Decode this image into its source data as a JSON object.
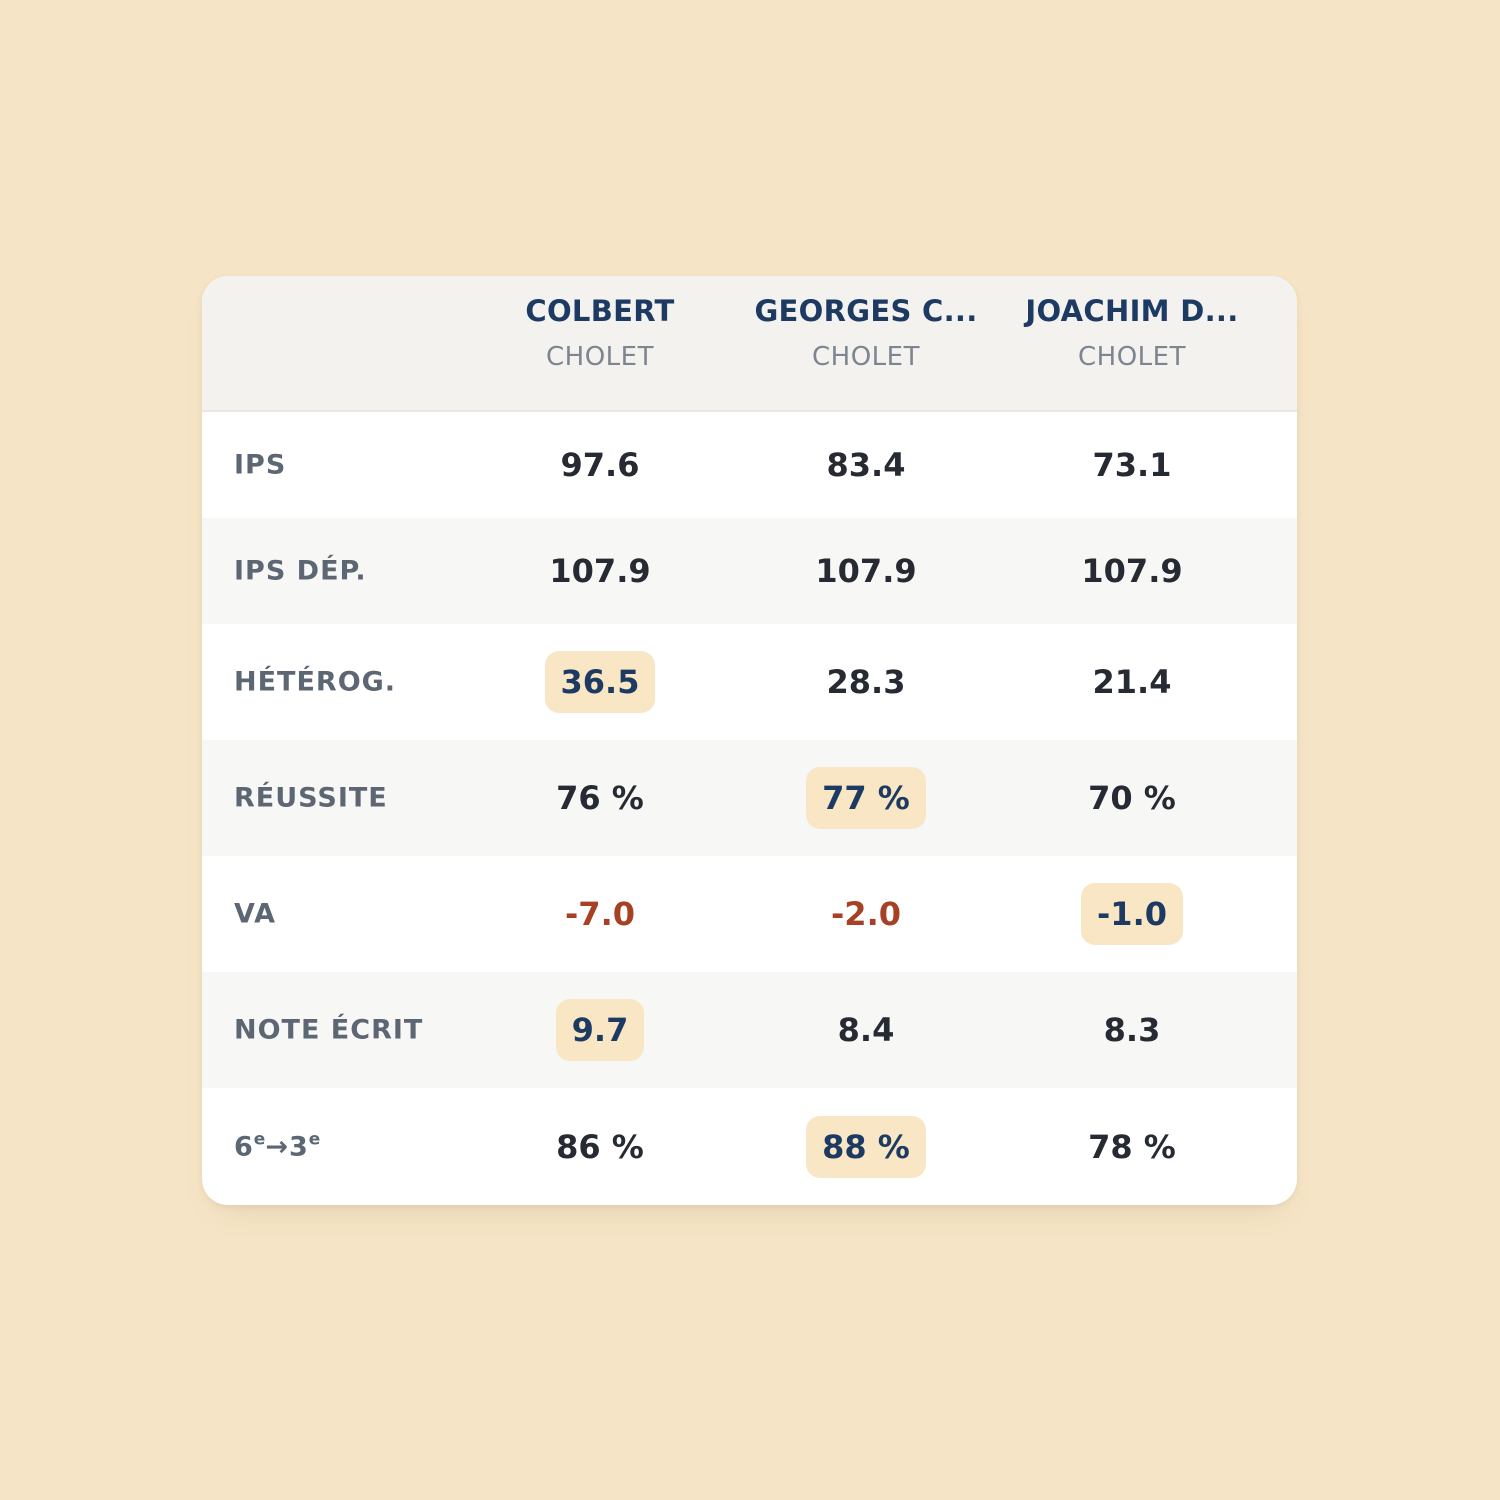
{
  "columns": [
    {
      "name": "COLBERT",
      "city": "CHOLET"
    },
    {
      "name": "GEORGES C...",
      "city": "CHOLET"
    },
    {
      "name": "JOACHIM D...",
      "city": "CHOLET"
    }
  ],
  "rows": [
    {
      "label": "IPS",
      "values": [
        "97.6",
        "83.4",
        "73.1"
      ]
    },
    {
      "label": "IPS DÉP.",
      "values": [
        "107.9",
        "107.9",
        "107.9"
      ]
    },
    {
      "label": "HÉTÉROG.",
      "values": [
        "36.5",
        "28.3",
        "21.4"
      ]
    },
    {
      "label": "RÉUSSITE",
      "values": [
        "76 %",
        "77 %",
        "70 %"
      ]
    },
    {
      "label": "VA",
      "values": [
        "-7.0",
        "-2.0",
        "-1.0"
      ]
    },
    {
      "label": "NOTE ÉCRIT",
      "values": [
        "9.7",
        "8.4",
        "8.3"
      ]
    },
    {
      "label_parts": [
        "6",
        "e",
        "→3",
        "e"
      ],
      "values": [
        "86 %",
        "88 %",
        "78 %"
      ]
    }
  ],
  "colors": {
    "background": "#f5e4c5",
    "highlight": "#f8e6c5",
    "accent_text": "#1d3a63",
    "negative_text": "#a64126"
  }
}
